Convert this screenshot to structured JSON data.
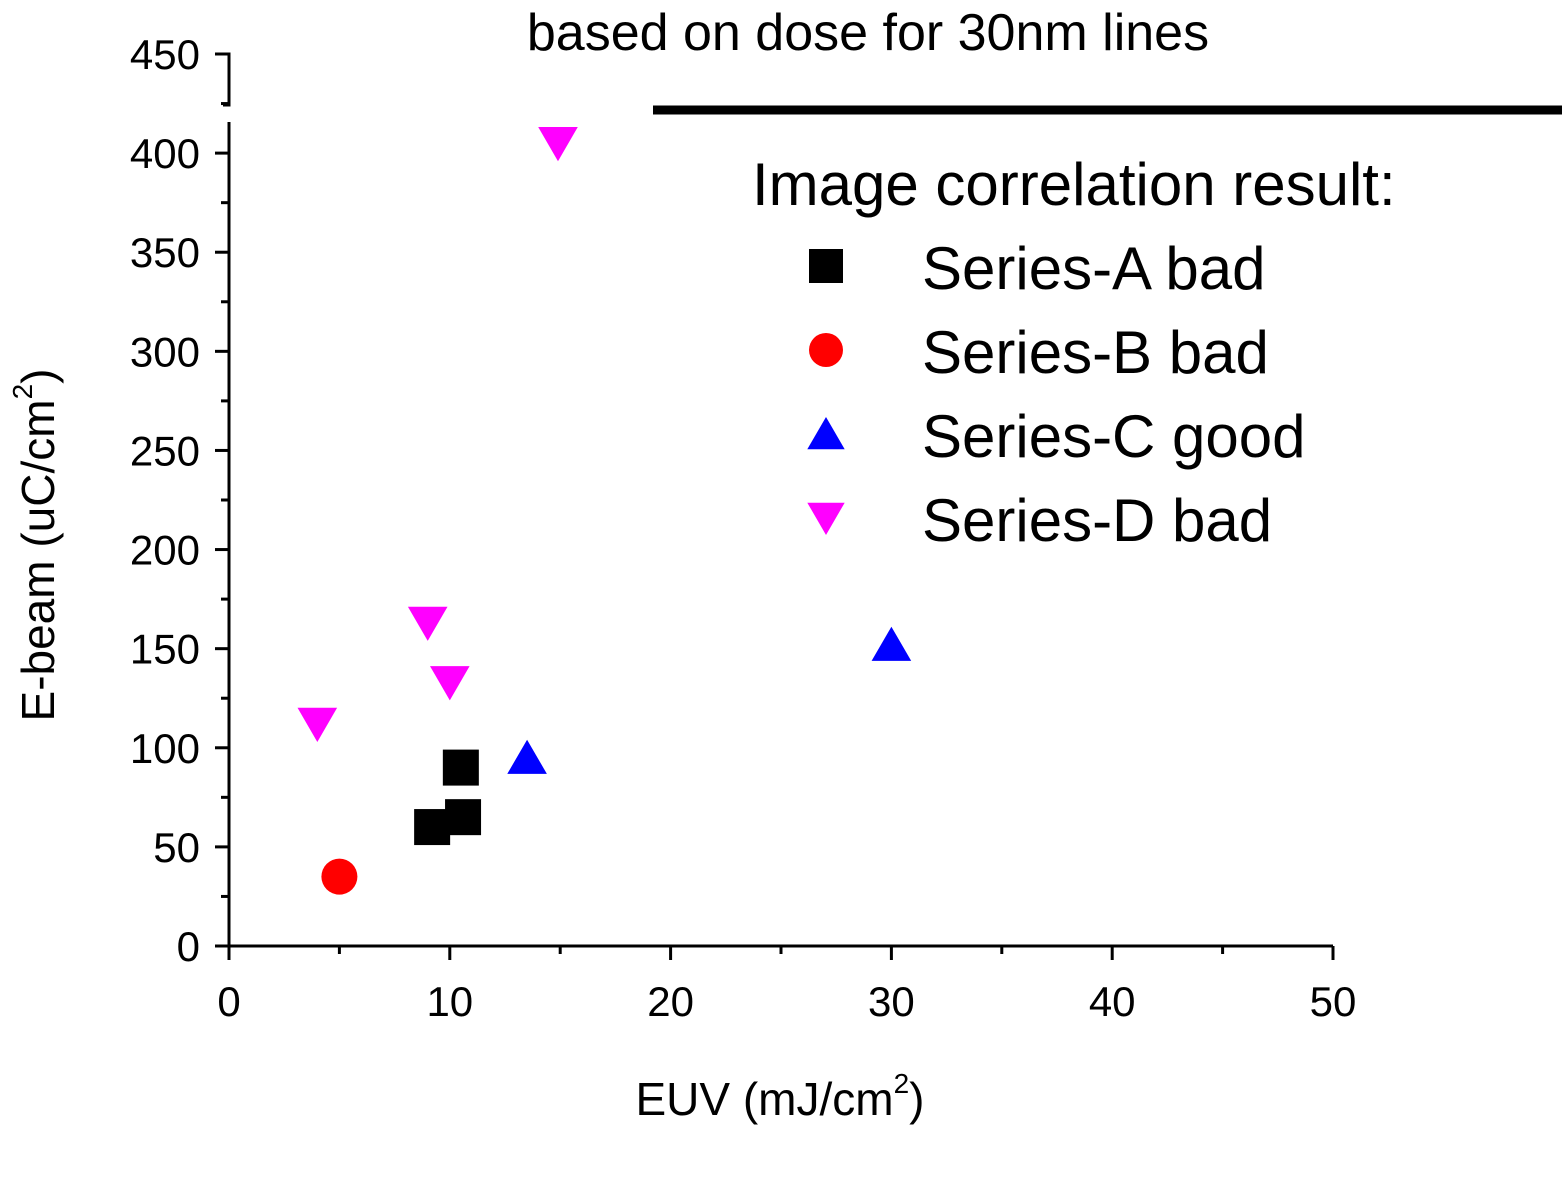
{
  "chart_data": {
    "type": "scatter",
    "title": "based on dose for 30nm lines",
    "xlabel": "EUV (mJ/cm",
    "xlabel_sup": "2",
    "xlabel_tail": ")",
    "ylabel": "E-beam (uC/cm",
    "ylabel_sup": "2",
    "ylabel_tail": ")",
    "xlim": [
      0,
      50
    ],
    "ylim": [
      0,
      450
    ],
    "xticks": [
      0,
      10,
      20,
      30,
      40,
      50
    ],
    "yticks": [
      0,
      50,
      100,
      150,
      200,
      250,
      300,
      350,
      400,
      450
    ],
    "legend_heading": "Image correlation result:",
    "legend_position": "top-right",
    "series": [
      {
        "name": "Series-A bad",
        "marker": "square",
        "color": "#000000",
        "points": [
          {
            "x": 9.2,
            "y": 60
          },
          {
            "x": 10.6,
            "y": 65
          },
          {
            "x": 10.5,
            "y": 90
          }
        ]
      },
      {
        "name": "Series-B bad",
        "marker": "circle",
        "color": "#ff0000",
        "points": [
          {
            "x": 5.0,
            "y": 35
          }
        ]
      },
      {
        "name": "Series-C good",
        "marker": "triangle-up",
        "color": "#0000ff",
        "points": [
          {
            "x": 13.5,
            "y": 95
          },
          {
            "x": 30.0,
            "y": 152
          }
        ]
      },
      {
        "name": "Series-D bad",
        "marker": "triangle-down",
        "color": "#ff00ff",
        "points": [
          {
            "x": 4.0,
            "y": 112
          },
          {
            "x": 9.0,
            "y": 163
          },
          {
            "x": 10.0,
            "y": 133
          },
          {
            "x": 14.9,
            "y": 405
          }
        ]
      }
    ]
  }
}
